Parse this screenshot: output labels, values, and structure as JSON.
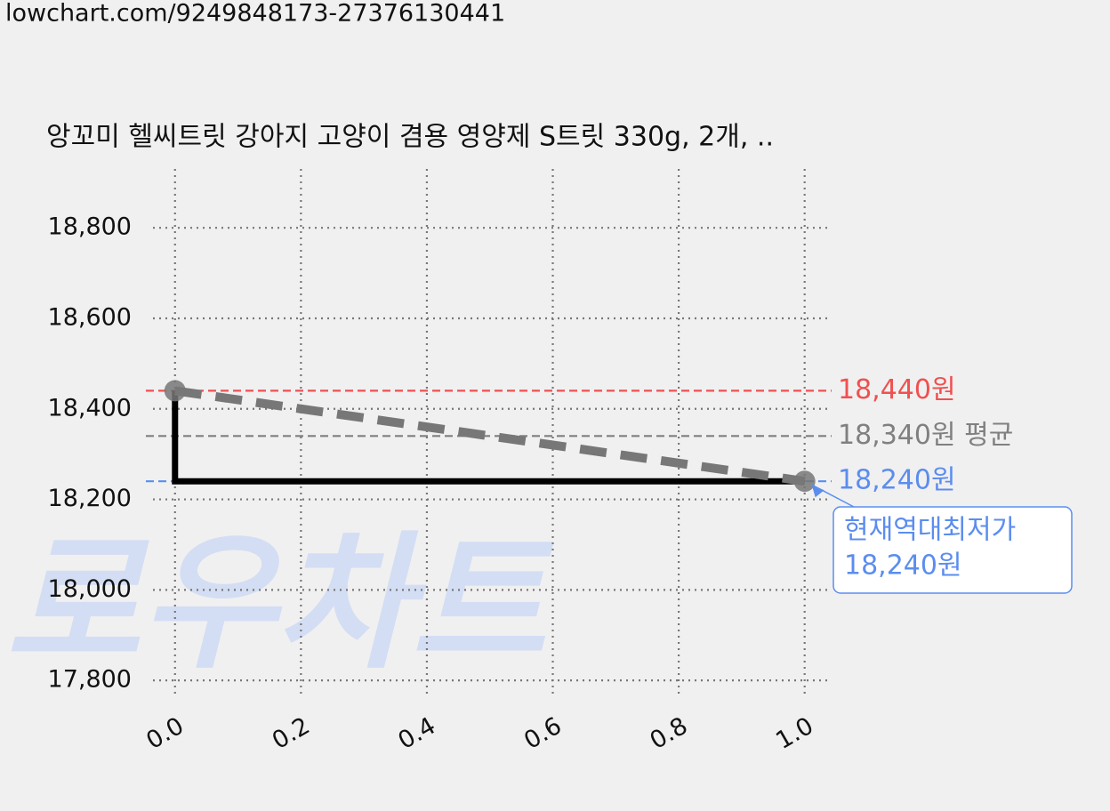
{
  "url": "lowchart.com/9249848173-27376130441",
  "watermark": "로우차트",
  "chart_data": {
    "type": "line",
    "title": "앙꼬미 헬씨트릿 강아지 고양이 겸용 영양제 S트릿 330g, 2개, ..",
    "x": [
      0,
      1
    ],
    "series": [
      {
        "color": "#000000",
        "values": [
          18440,
          18240
        ],
        "step": "pre",
        "dash": false
      },
      {
        "color": "#777777",
        "values": [
          18440,
          18240
        ],
        "dash": true,
        "markers": true
      }
    ],
    "xlim": [
      -0.035,
      1.04
    ],
    "ylim": [
      17761,
      18930
    ],
    "xticks": [
      {
        "value": 0,
        "label": "0.0"
      },
      0.2,
      0.4,
      0.6,
      0.8,
      {
        "value": 1,
        "label": "1.0"
      }
    ],
    "yticks": [
      {
        "value": 17800,
        "label": "17,800"
      },
      {
        "value": 18000,
        "label": "18,000"
      },
      {
        "value": 18200,
        "label": "18,200"
      },
      {
        "value": 18400,
        "label": "18,400"
      },
      {
        "value": 18600,
        "label": "18,600"
      },
      {
        "value": 18800,
        "label": "18,800"
      }
    ],
    "grid": true,
    "reference_lines": [
      {
        "value": 18440,
        "label": "18,440원",
        "color": "#f05050"
      },
      {
        "value": 18340,
        "label": "18,340원 평균",
        "color": "#808080"
      },
      {
        "value": 18240,
        "label": "18,240원",
        "color": "#5b8def"
      }
    ],
    "annotation": {
      "lines": [
        "현재역대최저가",
        "18,240원"
      ],
      "x": 1,
      "y": 18240,
      "color": "#5b8def"
    }
  }
}
